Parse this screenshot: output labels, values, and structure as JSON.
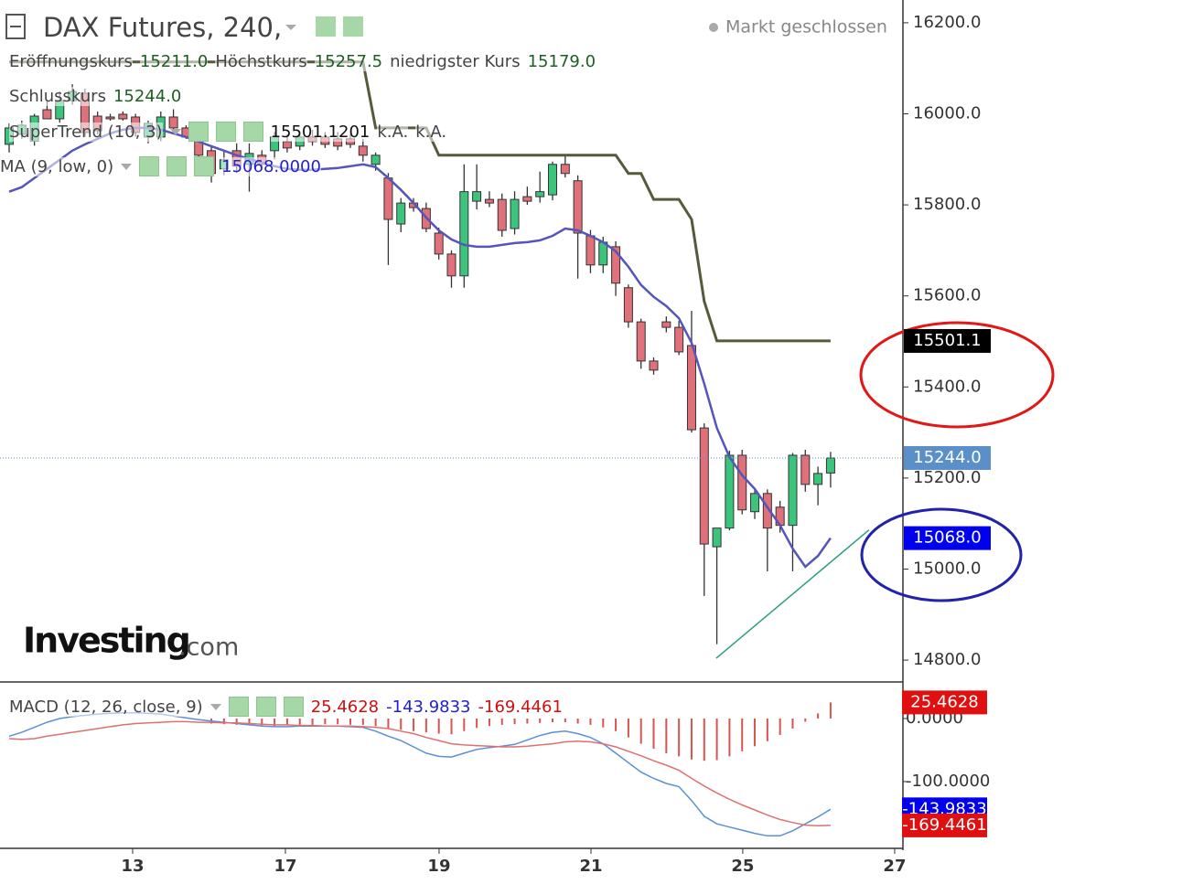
{
  "header": {
    "title": "DAX Futures, 240,",
    "status": "Markt geschlossen"
  },
  "logo": {
    "brand": "Investing",
    "suffix": ".com"
  },
  "chart_data": [
    {
      "type": "candlestick",
      "x": [
        0,
        1,
        2,
        3,
        4,
        5,
        6,
        7,
        8,
        9,
        10,
        11,
        12,
        13,
        14,
        15,
        16,
        17,
        18,
        19,
        20,
        21,
        22,
        23,
        24,
        25,
        26,
        27,
        28,
        29,
        30,
        31,
        32,
        33,
        34,
        35,
        36,
        37,
        38,
        39,
        40,
        41,
        42,
        43,
        44,
        45,
        46,
        47,
        48,
        49,
        50,
        51,
        52,
        53,
        54,
        55,
        56,
        57,
        58,
        59,
        60,
        61,
        62,
        63,
        64,
        65
      ],
      "open": [
        15933,
        15955,
        15940,
        16009,
        15989,
        16029,
        16045,
        15995,
        15993,
        15999,
        15993,
        15949,
        15949,
        15993,
        15969,
        15949,
        15919,
        15879,
        15919,
        15889,
        15909,
        15919,
        15939,
        15929,
        15949,
        15949,
        15945,
        15945,
        15929,
        15889,
        15859,
        15758,
        15804,
        15792,
        15738,
        15692,
        15644,
        15808,
        15812,
        15812,
        15748,
        15818,
        15818,
        15822,
        15889,
        15853,
        15732,
        15668,
        15708,
        15618,
        15543,
        15457,
        15543,
        15531,
        15491,
        15310,
        15049,
        15090,
        15250,
        15126,
        15166,
        15136,
        15096,
        15250,
        15186,
        15211.0
      ],
      "high": [
        15979,
        15985,
        16000,
        16030,
        16049,
        16065,
        16055,
        16005,
        16000,
        16005,
        16000,
        15985,
        16005,
        16010,
        15975,
        15955,
        15930,
        15920,
        15935,
        15935,
        15920,
        15960,
        15955,
        15960,
        15965,
        15960,
        15960,
        15955,
        15945,
        15915,
        15870,
        15815,
        15815,
        15805,
        15750,
        15700,
        15889,
        15889,
        15830,
        15825,
        15830,
        15840,
        15873,
        15895,
        15909,
        15865,
        15745,
        15730,
        15720,
        15625,
        15550,
        15465,
        15555,
        15545,
        15567,
        15320,
        15080,
        15260,
        15262,
        15175,
        15175,
        15150,
        15255,
        15262,
        15225,
        15257.5
      ],
      "low": [
        15915,
        15945,
        15930,
        15995,
        15980,
        16020,
        15950,
        15955,
        15985,
        15985,
        15950,
        15935,
        15940,
        15960,
        15945,
        15900,
        15849,
        15865,
        15870,
        15829,
        15880,
        15900,
        15915,
        15920,
        15930,
        15925,
        15920,
        15925,
        15895,
        15875,
        15668,
        15740,
        15785,
        15740,
        15680,
        15618,
        15618,
        15790,
        15795,
        15730,
        15735,
        15800,
        15805,
        15810,
        15860,
        15638,
        15650,
        15650,
        15600,
        15530,
        15440,
        15427,
        15520,
        15470,
        15300,
        14941,
        14835,
        15085,
        15120,
        15110,
        14995,
        15080,
        14995,
        15170,
        15140,
        15179.0
      ],
      "close": [
        15969,
        15975,
        15995,
        15989,
        16029,
        16049,
        15959,
        15963,
        15989,
        15989,
        15959,
        15979,
        15993,
        15969,
        15949,
        15909,
        15869,
        15899,
        15885,
        15913,
        15889,
        15949,
        15925,
        15949,
        15939,
        15933,
        15929,
        15933,
        15909,
        15909,
        15768,
        15804,
        15794,
        15748,
        15692,
        15644,
        15829,
        15829,
        15804,
        15744,
        15812,
        15808,
        15829,
        15889,
        15869,
        15738,
        15668,
        15718,
        15628,
        15543,
        15457,
        15437,
        15531,
        15477,
        15306,
        15055,
        15090,
        15250,
        15130,
        15166,
        15090,
        15096,
        15250,
        15186,
        15210,
        15244.0
      ],
      "up_color": "#3cc47c",
      "down_color": "#e0707a",
      "series": [
        {
          "name": "SuperTrend (10, 3)",
          "color": "#555a3c",
          "values": [
            16114,
            16114,
            16114,
            16114,
            16114,
            16114,
            16114,
            16114,
            16114,
            16114,
            16114,
            16114,
            16114,
            16114,
            16114,
            16114,
            16114,
            16114,
            16114,
            16114,
            16114,
            16114,
            16114,
            16114,
            16114,
            16114,
            16114,
            16114,
            16114,
            15969,
            15969,
            15969,
            15969,
            15969,
            15909,
            15909,
            15909,
            15909,
            15909,
            15909,
            15909,
            15909,
            15909,
            15909,
            15909,
            15909,
            15909,
            15909,
            15909,
            15869,
            15869,
            15812,
            15812,
            15812,
            15768,
            15588,
            15501.1201,
            15501.1201,
            15501.1201,
            15501.1201,
            15501.1201,
            15501.1201,
            15501.1201,
            15501.1201,
            15501.1201,
            15501.1201
          ]
        },
        {
          "name": "MA (9, low, 0)",
          "color": "#5555bb",
          "values": [
            15829,
            15839,
            15859,
            15879,
            15899,
            15919,
            15933,
            15945,
            15957,
            15965,
            15969,
            15969,
            15965,
            15957,
            15949,
            15939,
            15929,
            15919,
            15909,
            15901,
            15893,
            15885,
            15879,
            15877,
            15877,
            15879,
            15881,
            15885,
            15889,
            15883,
            15859,
            15833,
            15804,
            15772,
            15744,
            15724,
            15712,
            15708,
            15708,
            15712,
            15716,
            15718,
            15722,
            15732,
            15748,
            15744,
            15732,
            15718,
            15698,
            15664,
            15624,
            15598,
            15578,
            15551,
            15497,
            15407,
            15310,
            15246,
            15206,
            15176,
            15136,
            15096,
            15045,
            15005,
            15029,
            15068.0
          ]
        }
      ],
      "legend": {
        "open_label": "Eröffnungskurs",
        "open": "15211.0",
        "high_label": "Höchstkurs",
        "high": "15257.5",
        "low_label": "niedrigster Kurs",
        "low": "15179.0",
        "close_label": "Schlusskurs",
        "close": "15244.0",
        "supertrend_value": "15501.1201",
        "na_1": "k.A.",
        "na_2": "k.A.",
        "ma_value": "15068.0000"
      },
      "price_tags": [
        {
          "value": 15501.1,
          "label": "15501.1",
          "color": "#000000"
        },
        {
          "value": 15244.0,
          "label": "15244.0",
          "color": "#5b8fc7"
        },
        {
          "value": 15068.0,
          "label": "15068.0",
          "color": "#0000ee"
        }
      ],
      "trendline": {
        "x": [
          55.95,
          68.04
        ],
        "values": [
          14804,
          15086
        ],
        "color": "#2e9e7a"
      },
      "xlim": [
        -0.724,
        70.58
      ],
      "ylim": [
        14754,
        16250
      ],
      "yticks": [
        {
          "value": 16200,
          "label": "16200.0"
        },
        {
          "value": 16000,
          "label": "16000.0"
        },
        {
          "value": 15800,
          "label": "15800.0"
        },
        {
          "value": 15600,
          "label": "15600.0"
        },
        {
          "value": 15400,
          "label": "15400.0"
        },
        {
          "value": 15200,
          "label": "15200.0"
        },
        {
          "value": 15000,
          "label": "15000.0"
        },
        {
          "value": 14800,
          "label": "14800.0"
        }
      ]
    },
    {
      "type": "macd",
      "title": "MACD (12, 26, close, 9)",
      "series": [
        {
          "name": "MACD",
          "color": "#5b8fd6",
          "value_label": "-143.9833",
          "values": [
            -28,
            -22,
            -14,
            -6,
            0,
            3,
            5,
            7,
            8,
            9,
            9,
            8,
            7,
            4,
            1,
            -2,
            -4,
            -6,
            -8,
            -10,
            -12,
            -13,
            -13,
            -12,
            -12,
            -12,
            -12,
            -13,
            -14,
            -20,
            -28,
            -35,
            -45,
            -55,
            -60,
            -61,
            -55,
            -49,
            -46,
            -44,
            -41,
            -34,
            -27,
            -22,
            -20,
            -24,
            -30,
            -40,
            -55,
            -70,
            -85,
            -95,
            -103,
            -108,
            -130,
            -155,
            -167,
            -172,
            -177,
            -182,
            -186,
            -186,
            -178,
            -167,
            -156,
            -143.9833
          ]
        },
        {
          "name": "Signal",
          "color": "#e07070",
          "value_label": "-169.4461",
          "values": [
            -32,
            -33,
            -32,
            -28,
            -25,
            -22,
            -19,
            -16,
            -13,
            -10,
            -8,
            -7,
            -6,
            -5,
            -5,
            -6,
            -6,
            -7,
            -7,
            -8,
            -9,
            -10,
            -10,
            -11,
            -11,
            -12,
            -12,
            -12,
            -13,
            -14,
            -16,
            -20,
            -24,
            -30,
            -35,
            -40,
            -42,
            -43,
            -44,
            -45,
            -45,
            -44,
            -42,
            -40,
            -37,
            -36,
            -37,
            -40,
            -45,
            -52,
            -59,
            -67,
            -74,
            -82,
            -95,
            -107,
            -118,
            -128,
            -137,
            -145,
            -153,
            -160,
            -165,
            -169,
            -170,
            -169.4461
          ]
        },
        {
          "name": "Histogram",
          "color": "#d9534f",
          "value_label": "25.4628",
          "values": [
            null,
            null,
            null,
            null,
            null,
            null,
            null,
            null,
            null,
            null,
            null,
            null,
            null,
            null,
            null,
            null,
            -8,
            -9,
            -10,
            -10,
            -11,
            -12,
            -11,
            -10,
            -10,
            -9,
            -9,
            -10,
            -10,
            -12,
            -16,
            -18,
            -20,
            -22,
            -24,
            -25,
            -20,
            -15,
            -12,
            -10,
            -9,
            -8,
            -7,
            -6,
            -6,
            -8,
            -10,
            -14,
            -20,
            -30,
            -40,
            -48,
            -55,
            -60,
            -65,
            -67,
            -66,
            -60,
            -52,
            -44,
            -36,
            -26,
            -16,
            -5,
            8,
            25.4628
          ]
        }
      ],
      "tags": [
        {
          "value": 25.4628,
          "label": "25.4628",
          "color": "#e01010"
        },
        {
          "value": -143.9833,
          "label": "-143.9833",
          "color": "#0000ee"
        },
        {
          "value": -169.4461,
          "label": "-169.4461",
          "color": "#e01010"
        }
      ],
      "ylim": [
        -205.8,
        55
      ],
      "yticks": [
        {
          "value": 0,
          "label": "0.0000"
        },
        {
          "value": -100,
          "label": "-100.0000"
        }
      ],
      "xticks": [
        {
          "value": 9.77,
          "label": "13"
        },
        {
          "value": 21.86,
          "label": "17"
        },
        {
          "value": 34.02,
          "label": "19"
        },
        {
          "value": 46.04,
          "label": "21"
        },
        {
          "value": 58.05,
          "label": "25"
        },
        {
          "value": 70.07,
          "label": "27"
        }
      ]
    }
  ]
}
